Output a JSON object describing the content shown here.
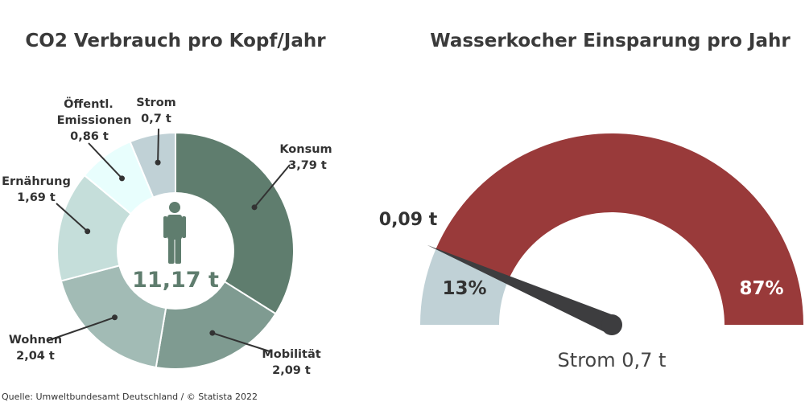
{
  "chart_data": [
    {
      "type": "pie",
      "title": "CO2 Verbrauch pro Kopf/Jahr",
      "center_label": "11,17 t",
      "center_icon": "person-icon",
      "slices": [
        {
          "label": "Konsum",
          "value_text": "3,79 t",
          "value": 3.79,
          "color": "#5f7d6e"
        },
        {
          "label": "Mobilität",
          "value_text": "2,09 t",
          "value": 2.09,
          "color": "#7f9b91"
        },
        {
          "label": "Wohnen",
          "value_text": "2,04 t",
          "value": 2.04,
          "color": "#a2bbb5"
        },
        {
          "label": "Ernährung",
          "value_text": "1,69 t",
          "value": 1.69,
          "color": "#c5deda"
        },
        {
          "label": "Öffentl. Emissionen",
          "label_lines": [
            "Öffentl.",
            "Emissionen"
          ],
          "value_text": "0,86 t",
          "value": 0.86,
          "color": "#e8fefd"
        },
        {
          "label": "Strom",
          "value_text": "0,7 t",
          "value": 0.7,
          "color": "#c0d1d6"
        }
      ]
    },
    {
      "type": "gauge",
      "title": "Wasserkocher Einsparung pro Jahr",
      "segments": [
        {
          "label": "13%",
          "share": 0.13,
          "color": "#c0d1d6"
        },
        {
          "label": "87%",
          "share": 0.87,
          "color": "#993a3a"
        }
      ],
      "pointer_value": 0.13,
      "pointer_label": "0,09 t",
      "caption": "Strom 0,7 t"
    }
  ],
  "source": "Quelle: Umweltbundesamt Deutschland / © Statista 2022",
  "colors": {
    "needle": "#3d3d3f",
    "center_text": "#5f7d6e",
    "leader": "#333333"
  }
}
